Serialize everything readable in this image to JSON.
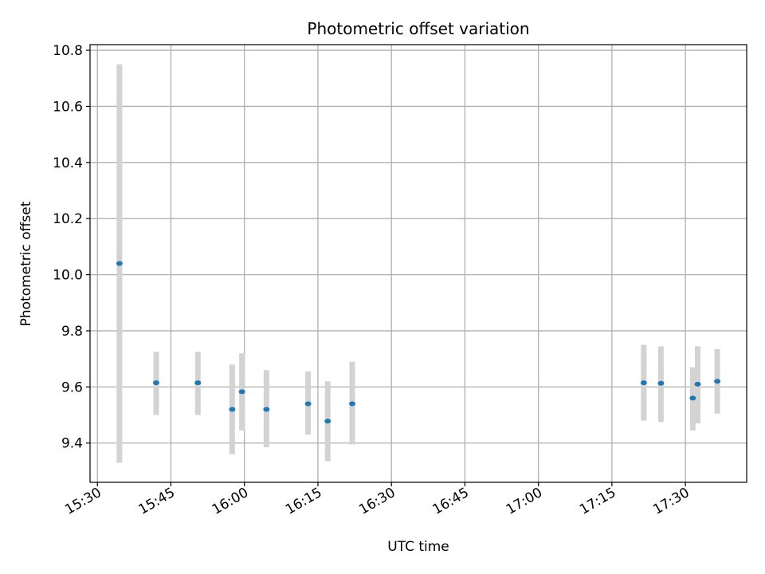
{
  "chart_data": {
    "type": "scatter",
    "title": "Photometric offset variation",
    "xlabel": "UTC time",
    "ylabel": "Photometric offset",
    "x_tick_labels": [
      "15:30",
      "15:45",
      "16:00",
      "16:15",
      "16:30",
      "16:45",
      "17:00",
      "17:15",
      "17:30"
    ],
    "y_tick_labels": [
      "9.4",
      "9.6",
      "9.8",
      "10.0",
      "10.2",
      "10.4",
      "10.6",
      "10.8"
    ],
    "xlim": [
      "15:28:30",
      "17:42:30"
    ],
    "ylim": [
      9.26,
      10.82
    ],
    "grid": true,
    "points": [
      {
        "x": "15:34:30",
        "y": 10.04,
        "ylow": 9.33,
        "yhigh": 10.75
      },
      {
        "x": "15:42:00",
        "y": 9.615,
        "ylow": 9.5,
        "yhigh": 9.725
      },
      {
        "x": "15:50:30",
        "y": 9.615,
        "ylow": 9.5,
        "yhigh": 9.725
      },
      {
        "x": "15:57:30",
        "y": 9.52,
        "ylow": 9.36,
        "yhigh": 9.68
      },
      {
        "x": "15:59:30",
        "y": 9.583,
        "ylow": 9.445,
        "yhigh": 9.72
      },
      {
        "x": "16:04:30",
        "y": 9.52,
        "ylow": 9.385,
        "yhigh": 9.66
      },
      {
        "x": "16:13:00",
        "y": 9.54,
        "ylow": 9.43,
        "yhigh": 9.655
      },
      {
        "x": "16:17:00",
        "y": 9.478,
        "ylow": 9.335,
        "yhigh": 9.62
      },
      {
        "x": "16:22:00",
        "y": 9.54,
        "ylow": 9.395,
        "yhigh": 9.69
      },
      {
        "x": "17:21:30",
        "y": 9.615,
        "ylow": 9.48,
        "yhigh": 9.75
      },
      {
        "x": "17:25:00",
        "y": 9.613,
        "ylow": 9.475,
        "yhigh": 9.745
      },
      {
        "x": "17:31:30",
        "y": 9.56,
        "ylow": 9.445,
        "yhigh": 9.67
      },
      {
        "x": "17:32:30",
        "y": 9.61,
        "ylow": 9.47,
        "yhigh": 9.745
      },
      {
        "x": "17:36:30",
        "y": 9.62,
        "ylow": 9.505,
        "yhigh": 9.735
      }
    ],
    "colors": {
      "point": "#1f77b4",
      "error_bar": "#d3d3d3",
      "grid": "#b0b0b0"
    }
  }
}
